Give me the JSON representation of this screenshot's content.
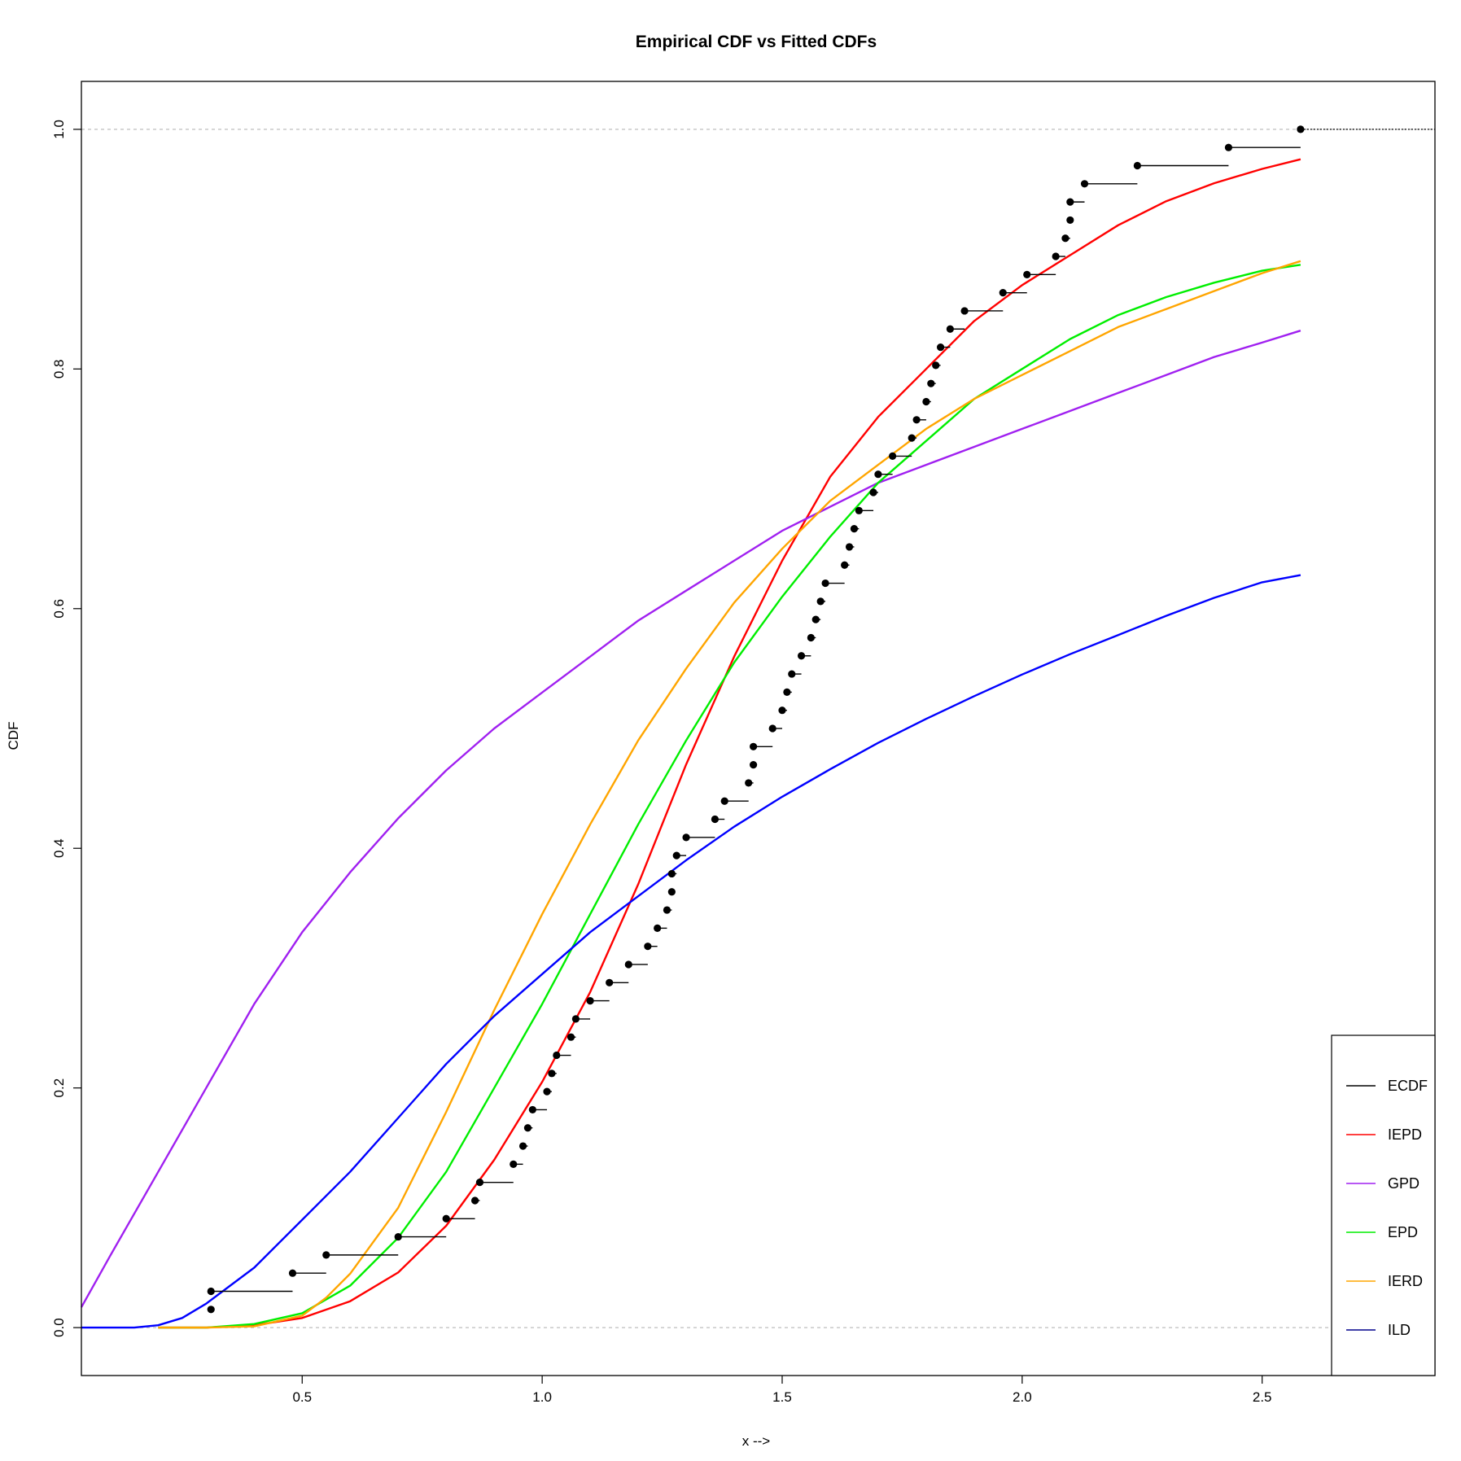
{
  "chart_data": {
    "type": "line",
    "title": "Empirical CDF vs Fitted CDFs",
    "xlabel": "x -->",
    "ylabel": "CDF",
    "xlim": [
      0.04,
      2.86
    ],
    "ylim": [
      -0.04,
      1.04
    ],
    "x_ticks": [
      0.5,
      1.0,
      1.5,
      2.0,
      2.5
    ],
    "x_tick_labels": [
      "0.5",
      "1.0",
      "1.5",
      "2.0",
      "2.5"
    ],
    "y_ticks": [
      0.0,
      0.2,
      0.4,
      0.6,
      0.8,
      1.0
    ],
    "y_tick_labels": [
      "0.0",
      "0.2",
      "0.4",
      "0.6",
      "0.8",
      "1.0"
    ],
    "reference_lines_y": [
      0.0,
      1.0
    ],
    "grid": false,
    "legend_position": "bottom-right",
    "ecdf": {
      "name": "ECDF",
      "color": "#000000",
      "x": [
        0.31,
        0.31,
        0.48,
        0.55,
        0.7,
        0.8,
        0.86,
        0.87,
        0.94,
        0.96,
        0.97,
        0.98,
        1.01,
        1.02,
        1.03,
        1.06,
        1.07,
        1.1,
        1.14,
        1.18,
        1.22,
        1.24,
        1.26,
        1.27,
        1.27,
        1.28,
        1.3,
        1.36,
        1.38,
        1.43,
        1.44,
        1.44,
        1.48,
        1.5,
        1.51,
        1.52,
        1.54,
        1.56,
        1.57,
        1.58,
        1.59,
        1.63,
        1.64,
        1.65,
        1.66,
        1.69,
        1.7,
        1.73,
        1.77,
        1.78,
        1.8,
        1.81,
        1.82,
        1.83,
        1.85,
        1.88,
        1.96,
        2.01,
        2.07,
        2.09,
        2.1,
        2.1,
        2.13,
        2.24,
        2.43,
        2.58
      ]
    },
    "series": [
      {
        "name": "IEPD",
        "color": "#ff0000",
        "x": [
          0.2,
          0.3,
          0.4,
          0.5,
          0.6,
          0.7,
          0.8,
          0.9,
          1.0,
          1.1,
          1.2,
          1.3,
          1.4,
          1.5,
          1.6,
          1.7,
          1.8,
          1.9,
          2.0,
          2.1,
          2.2,
          2.3,
          2.4,
          2.5,
          2.58
        ],
        "y": [
          0.0,
          0.0,
          0.002,
          0.008,
          0.022,
          0.046,
          0.085,
          0.14,
          0.205,
          0.28,
          0.37,
          0.47,
          0.56,
          0.64,
          0.71,
          0.76,
          0.8,
          0.84,
          0.87,
          0.895,
          0.92,
          0.94,
          0.955,
          0.967,
          0.975
        ]
      },
      {
        "name": "GPD",
        "color": "#a020f0",
        "x": [
          0.04,
          0.1,
          0.2,
          0.3,
          0.4,
          0.5,
          0.6,
          0.7,
          0.8,
          0.9,
          1.0,
          1.1,
          1.2,
          1.3,
          1.4,
          1.5,
          1.6,
          1.7,
          1.8,
          1.9,
          2.0,
          2.1,
          2.2,
          2.3,
          2.4,
          2.5,
          2.58
        ],
        "y": [
          0.017,
          0.06,
          0.13,
          0.2,
          0.27,
          0.33,
          0.38,
          0.425,
          0.465,
          0.5,
          0.53,
          0.56,
          0.59,
          0.615,
          0.64,
          0.665,
          0.685,
          0.705,
          0.72,
          0.735,
          0.75,
          0.765,
          0.78,
          0.795,
          0.81,
          0.822,
          0.832
        ]
      },
      {
        "name": "EPD",
        "color": "#00ee00",
        "x": [
          0.2,
          0.3,
          0.4,
          0.5,
          0.6,
          0.7,
          0.8,
          0.9,
          1.0,
          1.1,
          1.2,
          1.3,
          1.4,
          1.5,
          1.6,
          1.7,
          1.8,
          1.9,
          2.0,
          2.1,
          2.2,
          2.3,
          2.4,
          2.5,
          2.58
        ],
        "y": [
          0.0,
          0.0,
          0.003,
          0.012,
          0.035,
          0.075,
          0.13,
          0.2,
          0.27,
          0.345,
          0.42,
          0.49,
          0.555,
          0.61,
          0.66,
          0.705,
          0.74,
          0.775,
          0.8,
          0.825,
          0.845,
          0.86,
          0.872,
          0.882,
          0.887
        ]
      },
      {
        "name": "IERD",
        "color": "#ffa500",
        "x": [
          0.2,
          0.3,
          0.4,
          0.5,
          0.55,
          0.6,
          0.7,
          0.8,
          0.9,
          1.0,
          1.1,
          1.2,
          1.3,
          1.4,
          1.5,
          1.6,
          1.7,
          1.8,
          1.9,
          2.0,
          2.1,
          2.2,
          2.3,
          2.4,
          2.5,
          2.58
        ],
        "y": [
          0.0,
          0.0,
          0.001,
          0.01,
          0.025,
          0.045,
          0.1,
          0.18,
          0.265,
          0.345,
          0.42,
          0.49,
          0.55,
          0.605,
          0.65,
          0.69,
          0.72,
          0.75,
          0.775,
          0.795,
          0.815,
          0.835,
          0.85,
          0.865,
          0.88,
          0.89
        ]
      },
      {
        "name": "ILD",
        "color": "#0000ff",
        "x": [
          0.04,
          0.15,
          0.2,
          0.25,
          0.3,
          0.4,
          0.5,
          0.6,
          0.7,
          0.8,
          0.9,
          1.0,
          1.1,
          1.2,
          1.3,
          1.4,
          1.5,
          1.6,
          1.7,
          1.8,
          1.9,
          2.0,
          2.1,
          2.2,
          2.3,
          2.4,
          2.5,
          2.58
        ],
        "y": [
          0.0,
          0.0,
          0.002,
          0.008,
          0.02,
          0.05,
          0.09,
          0.13,
          0.175,
          0.22,
          0.26,
          0.295,
          0.33,
          0.36,
          0.39,
          0.418,
          0.443,
          0.466,
          0.488,
          0.508,
          0.527,
          0.545,
          0.562,
          0.578,
          0.594,
          0.609,
          0.622,
          0.628
        ]
      }
    ],
    "legend": [
      {
        "label": "ECDF",
        "color": "#000000"
      },
      {
        "label": "IEPD",
        "color": "#ff0000"
      },
      {
        "label": "GPD",
        "color": "#a020f0"
      },
      {
        "label": "EPD",
        "color": "#00ee00"
      },
      {
        "label": "IERD",
        "color": "#ffa500"
      },
      {
        "label": "ILD",
        "color": "#00008b"
      }
    ]
  }
}
